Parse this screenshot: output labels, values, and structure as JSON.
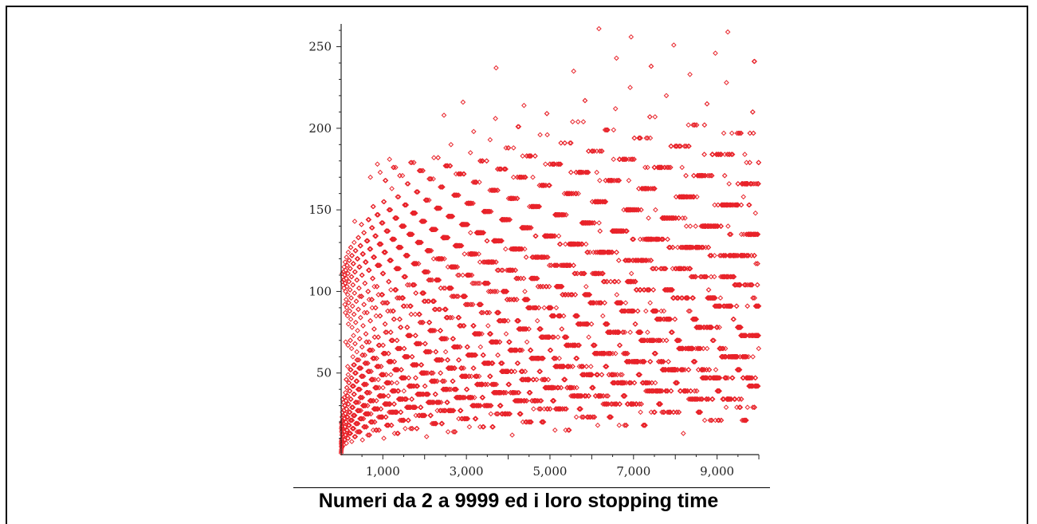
{
  "figure": {
    "caption": "Numeri da 2 a 9999 ed i loro stopping time"
  },
  "chart_data": {
    "type": "scatter",
    "title": "",
    "xlabel": "",
    "ylabel": "",
    "xlim": [
      2,
      9999
    ],
    "ylim": [
      0,
      262
    ],
    "x_ticks": [
      1000,
      3000,
      5000,
      7000,
      9000
    ],
    "x_tick_labels": [
      "1,000",
      "3,000",
      "5,000",
      "7,000",
      "9,000"
    ],
    "y_ticks": [
      50,
      100,
      150,
      200,
      250
    ],
    "y_tick_labels": [
      "50",
      "100",
      "150",
      "200",
      "250"
    ],
    "grid": false,
    "legend": "none",
    "marker": "diamond",
    "series": [
      {
        "color": "#e8242b",
        "points": "stopping time of n for n = 2 ... 9999"
      }
    ]
  }
}
